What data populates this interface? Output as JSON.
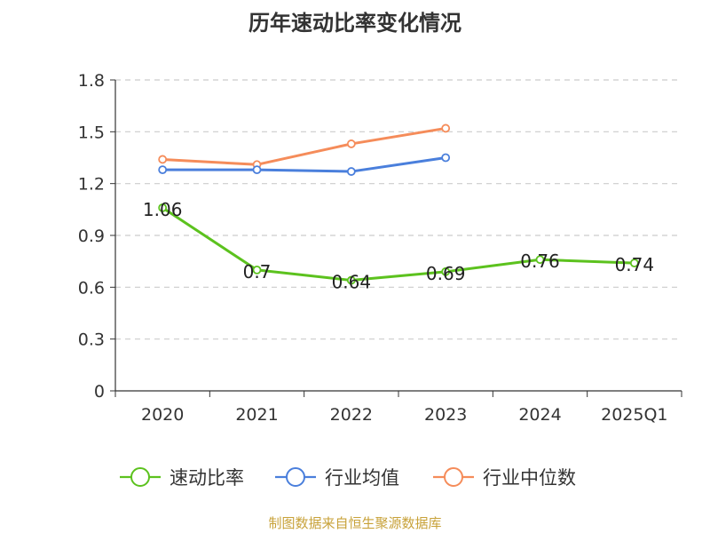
{
  "chart_data": {
    "type": "line",
    "title": "历年速动比率变化情况",
    "categories": [
      "2020",
      "2021",
      "2022",
      "2023",
      "2024",
      "2025Q1"
    ],
    "ylim": [
      0,
      1.8
    ],
    "yticks": [
      "0",
      "0.3",
      "0.6",
      "0.9",
      "1.2",
      "1.5",
      "1.8"
    ],
    "grid": true,
    "legend_position": "bottom",
    "series": [
      {
        "name": "速动比率",
        "color": "#5cc21e",
        "values": [
          1.06,
          0.7,
          0.64,
          0.69,
          0.76,
          0.74
        ],
        "data_labels": [
          "1.06",
          "0.7",
          "0.64",
          "0.69",
          "0.76",
          "0.74"
        ]
      },
      {
        "name": "行业均值",
        "color": "#4a7fdc",
        "values": [
          1.28,
          1.28,
          1.27,
          1.35,
          null,
          null
        ]
      },
      {
        "name": "行业中位数",
        "color": "#f58c5a",
        "values": [
          1.34,
          1.31,
          1.43,
          1.52,
          null,
          null
        ]
      }
    ]
  },
  "source_note": "制图数据来自恒生聚源数据库"
}
